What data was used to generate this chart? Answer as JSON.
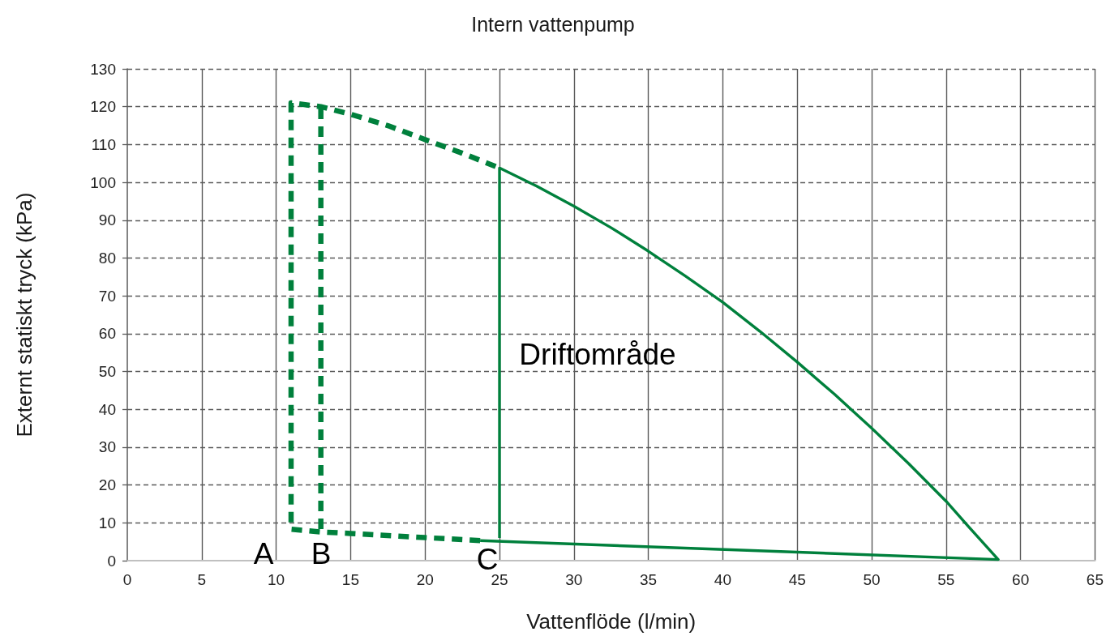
{
  "chart_data": {
    "type": "line",
    "title": "Intern vattenpump",
    "xlabel": "Vattenflöde (l/min)",
    "ylabel": "Externt statiskt tryck (kPa)",
    "xlim": [
      0,
      65
    ],
    "xticks": [
      0,
      5,
      10,
      15,
      20,
      25,
      30,
      35,
      40,
      45,
      50,
      55,
      60,
      65
    ],
    "ylim": [
      0,
      130
    ],
    "yticks": [
      0,
      10,
      20,
      30,
      40,
      50,
      60,
      70,
      80,
      90,
      100,
      110,
      120,
      130
    ],
    "grid": true,
    "marker": "none",
    "series": [
      {
        "x": [
          23.7,
          20,
          15,
          13,
          11,
          11,
          13,
          15,
          17.5,
          20,
          22.5,
          25
        ],
        "values": [
          5.3,
          6.1,
          7.2,
          7.6,
          8.3,
          121,
          120,
          118,
          115,
          111.3,
          107.7,
          103.8
        ],
        "color": "#00803c",
        "line_style": "dashed"
      },
      {
        "x": [
          13,
          13
        ],
        "values": [
          119.5,
          7.6
        ],
        "color": "#00803c",
        "line_style": "dashed"
      },
      {
        "x": [
          25,
          25,
          27.5,
          30,
          32.5,
          35,
          37.5,
          40,
          42.5,
          45,
          47.5,
          50,
          52.5,
          55,
          56.5,
          58.5,
          23.7
        ],
        "values": [
          6,
          103.8,
          99,
          93.7,
          88,
          81.8,
          75.2,
          68.3,
          60.6,
          52.5,
          44,
          35,
          25.6,
          15.7,
          9,
          0.3,
          5.3
        ],
        "color": "#00803c",
        "line_style": "solid"
      }
    ],
    "annotations": [
      "A",
      "B",
      "C",
      "Driftområde"
    ]
  }
}
